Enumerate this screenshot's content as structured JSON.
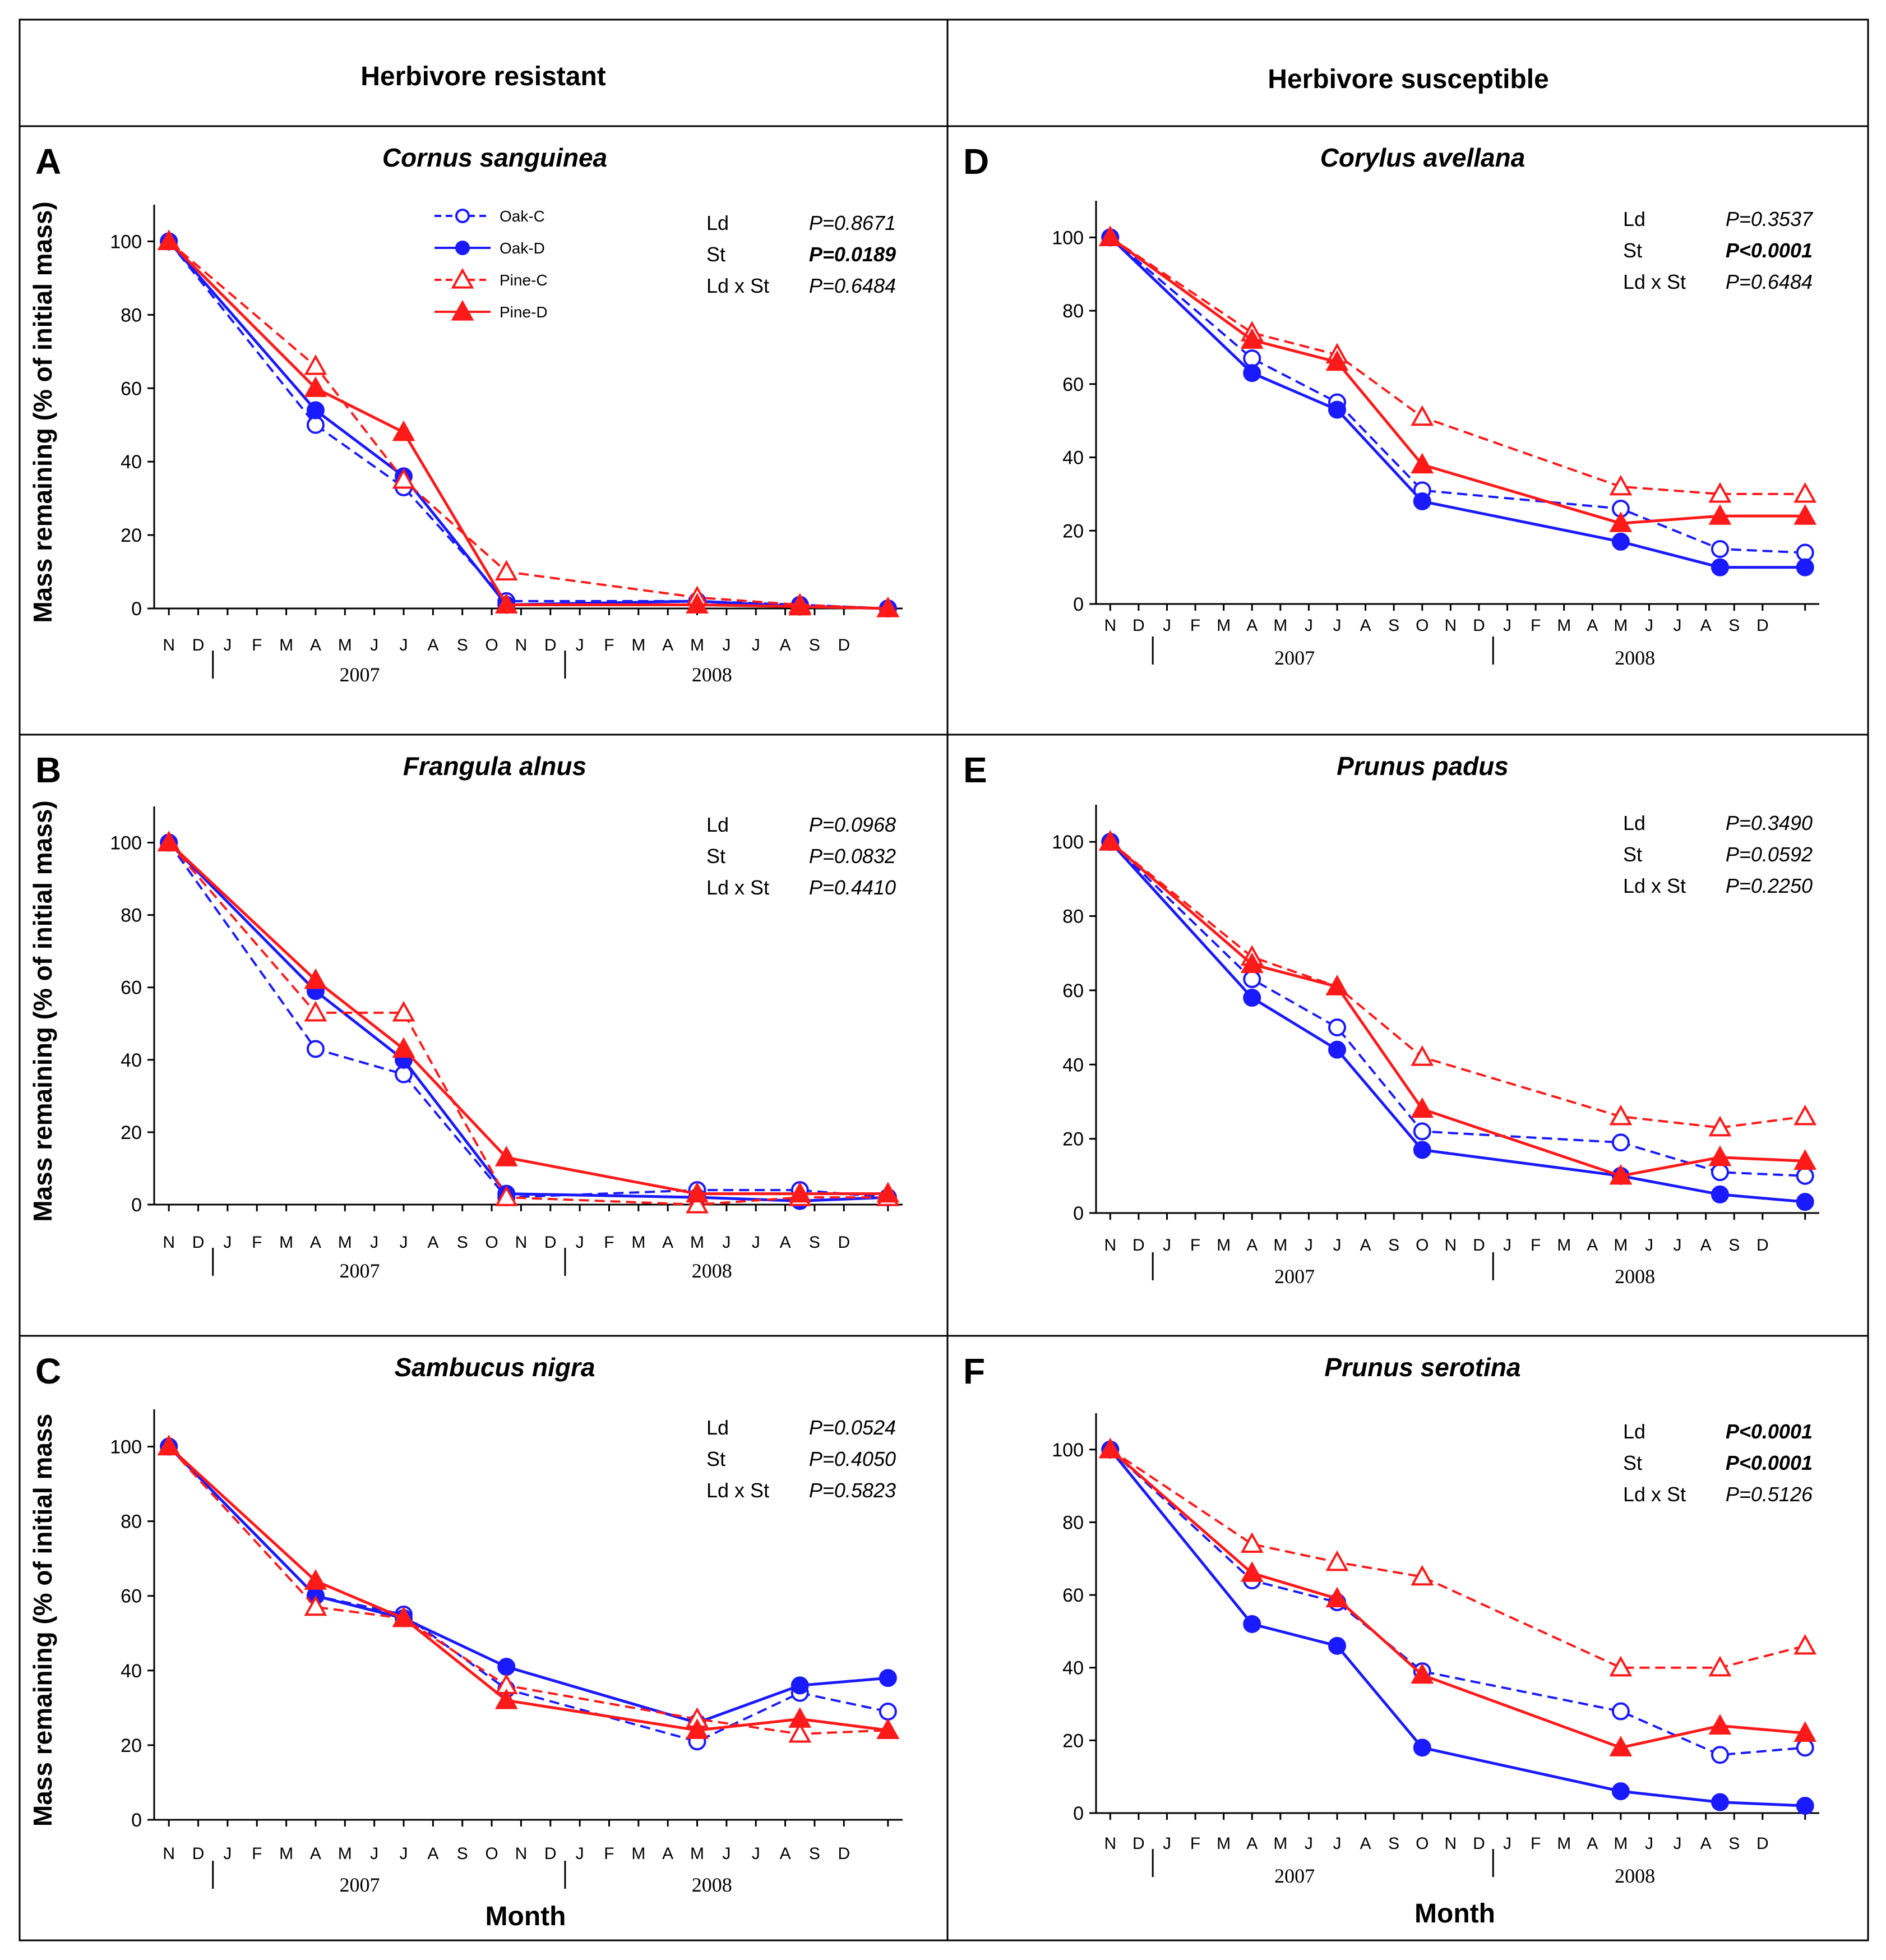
{
  "headers": {
    "left": "Herbivore resistant",
    "right": "Herbivore susceptible"
  },
  "legend": [
    "Oak-C",
    "Oak-D",
    "Pine-C",
    "Pine-D"
  ],
  "axis": {
    "ylabel": "Mass remaining (% of initial mass)",
    "ylabel_c": "Mass remaining (% of initial mass",
    "xlabel": "Month",
    "yticks": [
      "0",
      "20",
      "40",
      "60",
      "80",
      "100"
    ],
    "months": [
      "N",
      "D",
      "J",
      "F",
      "M",
      "A",
      "M",
      "J",
      "J",
      "A",
      "S",
      "O",
      "N",
      "D",
      "J",
      "F",
      "M",
      "A",
      "M",
      "J",
      "J",
      "A",
      "S",
      "D"
    ],
    "years": [
      "2007",
      "2008"
    ]
  },
  "colors": {
    "oak": "#1a1aff",
    "pine": "#ff1a1a",
    "text": "#000000"
  },
  "chart_data": [
    {
      "type": "line",
      "label": "A",
      "title": "Cornus sanguinea",
      "xlabel": "",
      "ylabel": "Mass remaining (% of initial mass)",
      "ylim": [
        0,
        110
      ],
      "x": [
        0,
        5,
        8,
        11.5,
        18,
        21.5,
        24.5
      ],
      "series": [
        {
          "name": "Oak-C",
          "values": [
            100,
            50,
            33,
            2,
            2,
            1,
            0
          ]
        },
        {
          "name": "Oak-D",
          "values": [
            100,
            54,
            36,
            1,
            2,
            0.5,
            0
          ]
        },
        {
          "name": "Pine-C",
          "values": [
            100,
            66,
            35,
            10,
            3,
            1,
            0
          ]
        },
        {
          "name": "Pine-D",
          "values": [
            100,
            60,
            48,
            1,
            1,
            0.5,
            0
          ]
        }
      ],
      "stats": [
        {
          "term": "Ld",
          "p": "P=0.8671",
          "bold": false
        },
        {
          "term": "St",
          "p": "P=0.0189",
          "bold": true
        },
        {
          "term": "Ld x St",
          "p": "P=0.6484",
          "bold": false
        }
      ]
    },
    {
      "type": "line",
      "label": "B",
      "title": "Frangula alnus",
      "xlabel": "",
      "ylabel": "Mass remaining (% of initial mass)",
      "ylim": [
        0,
        110
      ],
      "x": [
        0,
        5,
        8,
        11.5,
        18,
        21.5,
        24.5
      ],
      "series": [
        {
          "name": "Oak-C",
          "values": [
            100,
            43,
            36,
            2,
            4,
            4,
            2
          ]
        },
        {
          "name": "Oak-D",
          "values": [
            100,
            59,
            40,
            3,
            2,
            1,
            2
          ]
        },
        {
          "name": "Pine-C",
          "values": [
            100,
            53,
            53,
            2,
            0,
            2,
            2
          ]
        },
        {
          "name": "Pine-D",
          "values": [
            100,
            62,
            43,
            13,
            3,
            3,
            3
          ]
        }
      ],
      "stats": [
        {
          "term": "Ld",
          "p": "P=0.0968",
          "bold": false
        },
        {
          "term": "St",
          "p": "P=0.0832",
          "bold": false
        },
        {
          "term": "Ld x St",
          "p": "P=0.4410",
          "bold": false
        }
      ]
    },
    {
      "type": "line",
      "label": "C",
      "title": "Sambucus nigra",
      "xlabel": "Month",
      "ylabel": "Mass remaining (% of initial mass",
      "ylim": [
        0,
        110
      ],
      "x": [
        0,
        5,
        8,
        11.5,
        18,
        21.5,
        24.5
      ],
      "series": [
        {
          "name": "Oak-C",
          "values": [
            100,
            60,
            55,
            35,
            21,
            34,
            29
          ]
        },
        {
          "name": "Oak-D",
          "values": [
            100,
            60,
            54,
            41,
            26,
            36,
            38
          ]
        },
        {
          "name": "Pine-C",
          "values": [
            100,
            57,
            54,
            36,
            27,
            23,
            24
          ]
        },
        {
          "name": "Pine-D",
          "values": [
            100,
            64,
            54,
            32,
            24,
            27,
            24
          ]
        }
      ],
      "stats": [
        {
          "term": "Ld",
          "p": "P=0.0524",
          "bold": false
        },
        {
          "term": "St",
          "p": "P=0.4050",
          "bold": false
        },
        {
          "term": "Ld x St",
          "p": "P=0.5823",
          "bold": false
        }
      ]
    },
    {
      "type": "line",
      "label": "D",
      "title": "Corylus avellana",
      "xlabel": "",
      "ylabel": "",
      "ylim": [
        0,
        110
      ],
      "x": [
        0,
        5,
        8,
        11,
        18,
        21.5,
        24.5
      ],
      "series": [
        {
          "name": "Oak-C",
          "values": [
            100,
            67,
            55,
            31,
            26,
            15,
            14
          ]
        },
        {
          "name": "Oak-D",
          "values": [
            100,
            63,
            53,
            28,
            17,
            10,
            10
          ]
        },
        {
          "name": "Pine-C",
          "values": [
            100,
            74,
            68,
            51,
            32,
            30,
            30
          ]
        },
        {
          "name": "Pine-D",
          "values": [
            100,
            72,
            66,
            38,
            22,
            24,
            24
          ]
        }
      ],
      "stats": [
        {
          "term": "Ld",
          "p": "P=0.3537",
          "bold": false
        },
        {
          "term": "St",
          "p": "P<0.0001",
          "bold": true
        },
        {
          "term": "Ld x St",
          "p": "P=0.6484",
          "bold": false
        }
      ]
    },
    {
      "type": "line",
      "label": "E",
      "title": "Prunus padus",
      "xlabel": "",
      "ylabel": "",
      "ylim": [
        0,
        110
      ],
      "x": [
        0,
        5,
        8,
        11,
        18,
        21.5,
        24.5
      ],
      "series": [
        {
          "name": "Oak-C",
          "values": [
            100,
            63,
            50,
            22,
            19,
            11,
            10
          ]
        },
        {
          "name": "Oak-D",
          "values": [
            100,
            58,
            44,
            17,
            10,
            5,
            3
          ]
        },
        {
          "name": "Pine-C",
          "values": [
            100,
            69,
            61,
            42,
            26,
            23,
            26
          ]
        },
        {
          "name": "Pine-D",
          "values": [
            100,
            67,
            61,
            28,
            10,
            15,
            14
          ]
        }
      ],
      "stats": [
        {
          "term": "Ld",
          "p": "P=0.3490",
          "bold": false
        },
        {
          "term": "St",
          "p": "P=0.0592",
          "bold": false
        },
        {
          "term": "Ld x St",
          "p": "P=0.2250",
          "bold": false
        }
      ]
    },
    {
      "type": "line",
      "label": "F",
      "title": "Prunus serotina",
      "xlabel": "Month",
      "ylabel": "",
      "ylim": [
        0,
        110
      ],
      "x": [
        0,
        5,
        8,
        11,
        18,
        21.5,
        24.5
      ],
      "series": [
        {
          "name": "Oak-C",
          "values": [
            100,
            64,
            58,
            39,
            28,
            16,
            18
          ]
        },
        {
          "name": "Oak-D",
          "values": [
            100,
            52,
            46,
            18,
            6,
            3,
            2
          ]
        },
        {
          "name": "Pine-C",
          "values": [
            100,
            74,
            69,
            65,
            40,
            40,
            46
          ]
        },
        {
          "name": "Pine-D",
          "values": [
            100,
            66,
            59,
            38,
            18,
            24,
            22
          ]
        }
      ],
      "stats": [
        {
          "term": "Ld",
          "p": "P<0.0001",
          "bold": true
        },
        {
          "term": "St",
          "p": "P<0.0001",
          "bold": true
        },
        {
          "term": "Ld x St",
          "p": "P=0.5126",
          "bold": false
        }
      ]
    }
  ]
}
